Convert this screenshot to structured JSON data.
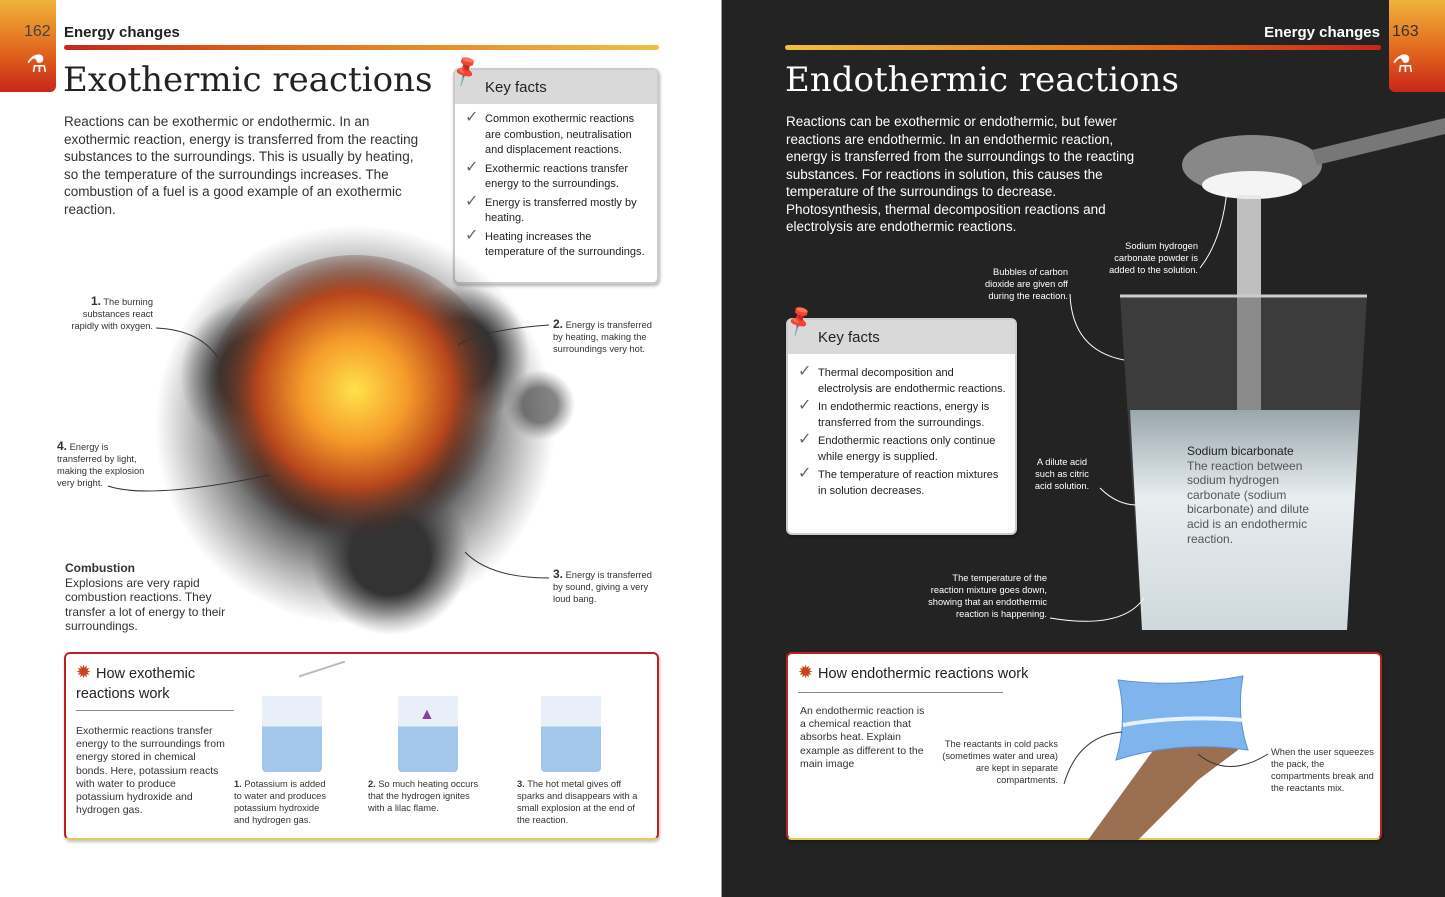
{
  "left": {
    "page_number": "162",
    "section": "Energy changes",
    "title": "Exothermic reactions",
    "intro": "Reactions can be exothermic or endothermic. In an exothermic reaction, energy is transferred from the reacting substances to the surroundings. This is usually by heating, so the temperature of the surroundings increases. The combustion of a fuel is a good example of an exothermic reaction.",
    "key_facts": {
      "title": "Key facts",
      "items": [
        "Common exothermic reactions are combustion, neutralisation and displacement reactions.",
        "Exothermic reactions transfer energy to the surroundings.",
        "Energy is transferred mostly by heating.",
        "Heating increases the temperature of the surroundings."
      ]
    },
    "annotations": [
      {
        "num": "1.",
        "text": "The burning substances react rapidly with oxygen."
      },
      {
        "num": "2.",
        "text": "Energy is transferred by heating, making the surroundings very hot."
      },
      {
        "num": "3.",
        "text": "Energy is transferred by sound, giving a very loud bang."
      },
      {
        "num": "4.",
        "text": "Energy is transferred by light, making the explosion very bright."
      }
    ],
    "combustion": {
      "heading": "Combustion",
      "text": "Explosions are very rapid combustion reactions. They transfer a lot of energy to their surroundings."
    },
    "how": {
      "title": "How exothemic reactions work",
      "text": "Exothermic reactions transfer energy to the surroundings from energy stored in chemical bonds. Here, potassium reacts with water to produce potassium hydroxide and hydrogen gas.",
      "steps": [
        {
          "num": "1.",
          "text": "Potassium is added to water and produces potassium hydroxide and hydrogen gas."
        },
        {
          "num": "2.",
          "text": "So much heating occurs that the hydrogen ignites with a lilac flame."
        },
        {
          "num": "3.",
          "text": "The hot metal gives off sparks and disappears with a small explosion at the end of the reaction."
        }
      ]
    }
  },
  "right": {
    "page_number": "163",
    "section": "Energy changes",
    "title": "Endothermic reactions",
    "intro": "Reactions can be exothermic or endothermic, but fewer reactions are endothermic. In an endothermic reaction, energy is transferred from the surroundings to the reacting substances. For reactions in solution, this causes the temperature of the surroundings to decrease. Photosynthesis, thermal decomposition reactions and electrolysis are endothermic reactions.",
    "key_facts": {
      "title": "Key facts",
      "items": [
        "Thermal decomposition and electrolysis are endothermic reactions.",
        "In endothermic reactions, energy is transferred from the surroundings.",
        "Endothermic reactions only continue while energy is supplied.",
        "The temperature of reaction mixtures in solution decreases."
      ]
    },
    "annotations": {
      "powder": "Sodium hydrogen carbonate powder is added to the solution.",
      "bubbles": "Bubbles of carbon dioxide are given off during the reaction.",
      "acid": "A dilute acid such as citric acid solution.",
      "temperature": "The temperature of the reaction mixture goes down, showing that an endothermic reaction is happening."
    },
    "bicarb": {
      "heading": "Sodium bicarbonate",
      "text": "The reaction between sodium hydrogen carbonate (sodium bicarbonate) and dilute acid is an endothermic reaction."
    },
    "how": {
      "title": "How endothermic reactions work",
      "text": "An endothermic reaction is a chemical reaction that absorbs heat. Explain example as different to the main image",
      "reactants": "The reactants in cold packs (sometimes water and urea) are kept in separate compartments.",
      "squeeze": "When the user squeezes the pack, the compartments break and the reactants mix."
    }
  },
  "colors": {
    "accent_red": "#c8261c",
    "accent_orange": "#e0601c",
    "accent_yellow": "#f0b43a",
    "dark_page": "#232323"
  }
}
